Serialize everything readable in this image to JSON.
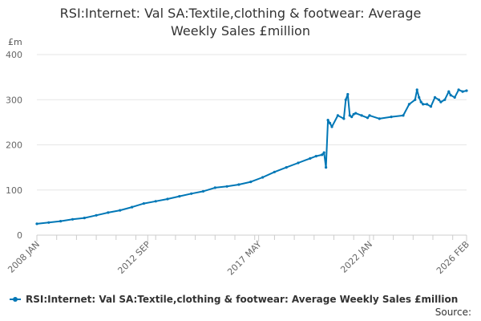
{
  "title_line1": "RSI:Internet: Val SA:Textile,clothing & footwear: Average",
  "title_line2": "Weekly Sales £million",
  "unit": "£m",
  "source_label": "Source:",
  "colors": {
    "series": "#0077b6",
    "grid": "#e6e6e6",
    "axis": "#cccccc",
    "tick_text": "#666666"
  },
  "chart_data": {
    "type": "line",
    "title": "RSI:Internet: Val SA:Textile,clothing & footwear: Average Weekly Sales £million",
    "ylabel": "£m",
    "ylim": [
      0,
      400
    ],
    "yticks": [
      0,
      100,
      200,
      300,
      400
    ],
    "xlim": [
      "2008-01",
      "2026-02"
    ],
    "xticks": [
      {
        "date": "2008-01",
        "label": "2008 JAN"
      },
      {
        "date": "2012-09",
        "label": "2012 SEP"
      },
      {
        "date": "2017-05",
        "label": "2017 MAY"
      },
      {
        "date": "2022-01",
        "label": "2022 JAN"
      },
      {
        "date": "2026-02",
        "label": "2026 FEB"
      }
    ],
    "legend_position": "bottom",
    "grid": true,
    "series": [
      {
        "name": "RSI:Internet: Val SA:Textile,clothing & footwear: Average Weekly Sales £million",
        "x": [
          "2008-01",
          "2008-07",
          "2009-01",
          "2009-07",
          "2010-01",
          "2010-07",
          "2011-01",
          "2011-07",
          "2012-01",
          "2012-07",
          "2013-01",
          "2013-07",
          "2014-01",
          "2014-07",
          "2015-01",
          "2015-07",
          "2016-01",
          "2016-07",
          "2017-01",
          "2017-07",
          "2018-01",
          "2018-07",
          "2019-01",
          "2019-07",
          "2019-10",
          "2020-01",
          "2020-02",
          "2020-03",
          "2020-04",
          "2020-05",
          "2020-06",
          "2020-09",
          "2020-12",
          "2021-01",
          "2021-02",
          "2021-03",
          "2021-04",
          "2021-05",
          "2021-06",
          "2021-09",
          "2021-12",
          "2022-01",
          "2022-06",
          "2022-12",
          "2023-06",
          "2023-09",
          "2023-12",
          "2024-01",
          "2024-02",
          "2024-03",
          "2024-04",
          "2024-06",
          "2024-08",
          "2024-10",
          "2024-12",
          "2025-01",
          "2025-03",
          "2025-05",
          "2025-06",
          "2025-08",
          "2025-10",
          "2025-12",
          "2026-02"
        ],
        "y": [
          25,
          28,
          31,
          35,
          38,
          44,
          50,
          55,
          62,
          70,
          75,
          80,
          86,
          92,
          97,
          105,
          108,
          112,
          118,
          128,
          140,
          150,
          160,
          170,
          175,
          178,
          183,
          150,
          255,
          248,
          240,
          265,
          258,
          300,
          312,
          265,
          262,
          268,
          270,
          265,
          260,
          265,
          258,
          262,
          265,
          290,
          300,
          322,
          305,
          295,
          290,
          290,
          285,
          305,
          300,
          295,
          300,
          318,
          310,
          305,
          322,
          318,
          320
        ]
      }
    ]
  }
}
